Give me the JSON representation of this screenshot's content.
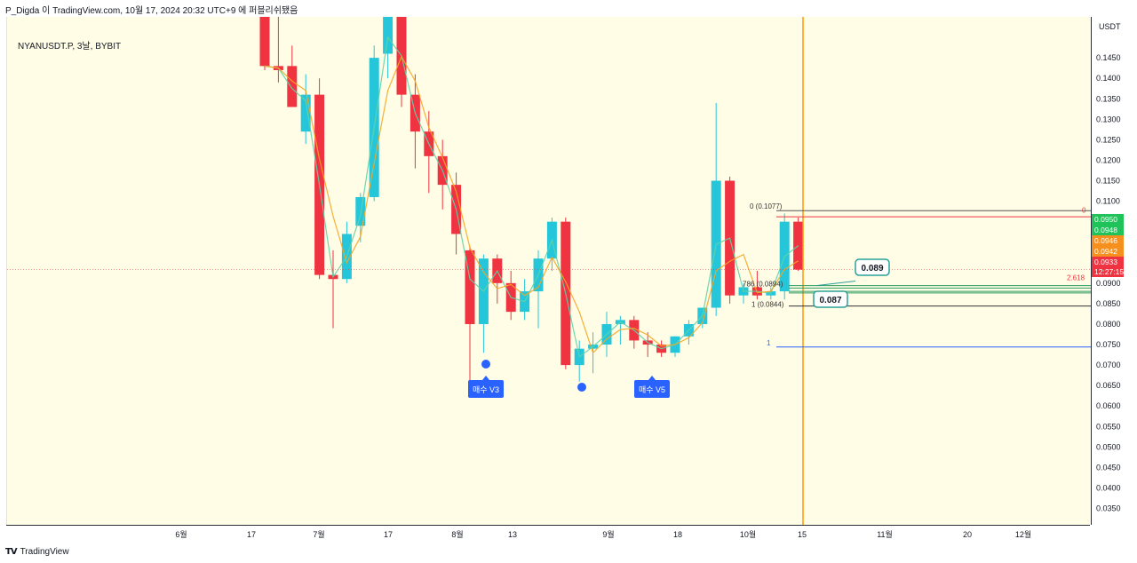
{
  "attribution": "P_Digda 이 TradingView.com, 10월 17, 2024 20:32 UTC+9 에 퍼블리쉬됐음",
  "footer": {
    "brand": "TradingView",
    "logo_icon": "tradingview-logo-icon"
  },
  "colors": {
    "up": "#26c6da",
    "down": "#ef3340",
    "bg": "#fffde6",
    "ma_fast": "#5fd3a8",
    "ma_slow": "#f5a623",
    "vline": "#ff9800",
    "label": "#2962ff"
  },
  "chart_data": {
    "type": "candlestick",
    "symbol": "NYANUSDT.P, 3날, BYBIT",
    "currency": "USDT",
    "ylim": [
      0.031,
      0.155
    ],
    "y_ticks": [
      "0.1450",
      "0.1400",
      "0.1350",
      "0.1300",
      "0.1250",
      "0.1200",
      "0.1150",
      "0.1100",
      "0.1050",
      "0.1000",
      "0.0950",
      "0.0900",
      "0.0850",
      "0.0800",
      "0.0750",
      "0.0700",
      "0.0650",
      "0.0600",
      "0.0550",
      "0.0500",
      "0.0450",
      "0.0400",
      "0.0350"
    ],
    "x_ticks": [
      "6월",
      "17",
      "7월",
      "17",
      "8월",
      "13",
      "9월",
      "18",
      "10월",
      "15",
      "11월",
      "20",
      "12월"
    ],
    "candles": [
      [
        0.158,
        0.158,
        0.142,
        0.143
      ],
      [
        0.143,
        0.155,
        0.139,
        0.142
      ],
      [
        0.143,
        0.148,
        0.134,
        0.133
      ],
      [
        0.127,
        0.141,
        0.124,
        0.136
      ],
      [
        0.136,
        0.14,
        0.091,
        0.092
      ],
      [
        0.092,
        0.098,
        0.079,
        0.091
      ],
      [
        0.091,
        0.105,
        0.09,
        0.102
      ],
      [
        0.104,
        0.112,
        0.1,
        0.111
      ],
      [
        0.111,
        0.148,
        0.11,
        0.145
      ],
      [
        0.146,
        0.158,
        0.14,
        0.155
      ],
      [
        0.155,
        0.158,
        0.133,
        0.136
      ],
      [
        0.136,
        0.141,
        0.118,
        0.127
      ],
      [
        0.127,
        0.132,
        0.112,
        0.121
      ],
      [
        0.121,
        0.125,
        0.108,
        0.114
      ],
      [
        0.114,
        0.117,
        0.097,
        0.102
      ],
      [
        0.098,
        0.099,
        0.066,
        0.08
      ],
      [
        0.08,
        0.097,
        0.073,
        0.096
      ],
      [
        0.096,
        0.097,
        0.085,
        0.09
      ],
      [
        0.09,
        0.093,
        0.081,
        0.083
      ],
      [
        0.083,
        0.091,
        0.081,
        0.088
      ],
      [
        0.088,
        0.098,
        0.079,
        0.096
      ],
      [
        0.096,
        0.106,
        0.093,
        0.105
      ],
      [
        0.105,
        0.106,
        0.069,
        0.07
      ],
      [
        0.07,
        0.076,
        0.066,
        0.074
      ],
      [
        0.074,
        0.078,
        0.068,
        0.075
      ],
      [
        0.075,
        0.083,
        0.072,
        0.08
      ],
      [
        0.08,
        0.082,
        0.075,
        0.081
      ],
      [
        0.081,
        0.082,
        0.074,
        0.076
      ],
      [
        0.076,
        0.078,
        0.072,
        0.075
      ],
      [
        0.075,
        0.076,
        0.072,
        0.073
      ],
      [
        0.073,
        0.077,
        0.072,
        0.077
      ],
      [
        0.077,
        0.081,
        0.075,
        0.08
      ],
      [
        0.08,
        0.084,
        0.079,
        0.084
      ],
      [
        0.084,
        0.134,
        0.082,
        0.115
      ],
      [
        0.115,
        0.116,
        0.085,
        0.087
      ],
      [
        0.087,
        0.09,
        0.085,
        0.089
      ],
      [
        0.089,
        0.093,
        0.086,
        0.087
      ],
      [
        0.087,
        0.089,
        0.086,
        0.088
      ],
      [
        0.088,
        0.107,
        0.086,
        0.105
      ],
      [
        0.105,
        0.106,
        0.093,
        0.0933
      ]
    ],
    "fib_labels": [
      {
        "text": "0 (0.1077)",
        "value": 0.1077
      },
      {
        "text": "786 (0.0894)",
        "value": 0.0894
      },
      {
        "text": "1 (0.0844)",
        "value": 0.0844
      }
    ],
    "fib_extension": {
      "zero": "0",
      "one": "1",
      "ext": "2.618"
    },
    "callouts": [
      {
        "text": "0.089"
      },
      {
        "text": "0.087"
      }
    ],
    "signals": [
      {
        "text": "매수 V3"
      },
      {
        "text": "매수 V5"
      }
    ],
    "price_badges": [
      {
        "text": "0.0950",
        "color": "#1fc35a"
      },
      {
        "text": "0.0948",
        "color": "#1fc35a"
      },
      {
        "text": "0.0946",
        "color": "#f5901e"
      },
      {
        "text": "0.0942",
        "color": "#f5901e"
      },
      {
        "text": "0.0933",
        "color": "#ef3340"
      },
      {
        "text": "12:27:15",
        "color": "#ef3340"
      }
    ]
  }
}
